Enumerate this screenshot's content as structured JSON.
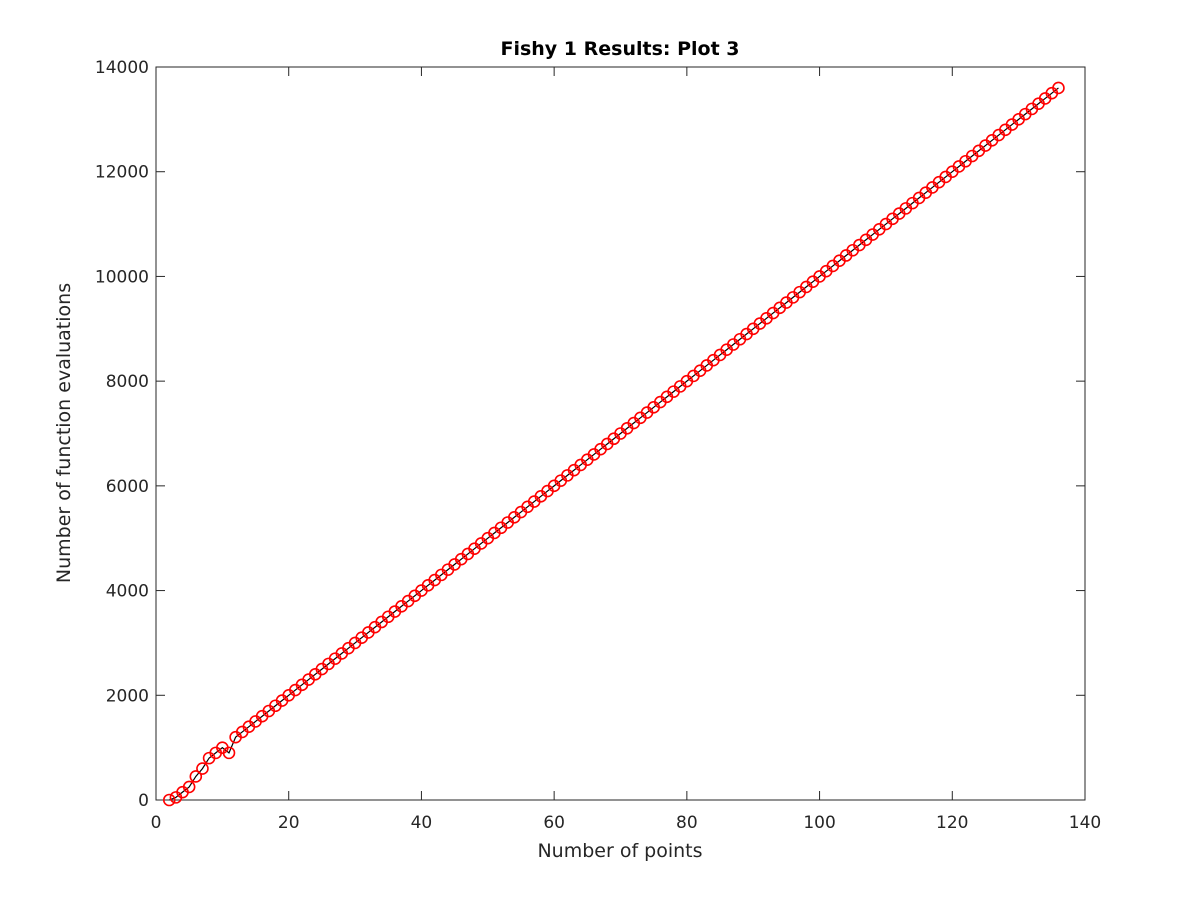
{
  "chart_data": {
    "type": "line",
    "title": "Fishy 1 Results:  Plot 3",
    "xlabel": "Number of points",
    "ylabel": "Number of function evaluations",
    "xlim": [
      0,
      140
    ],
    "ylim": [
      0,
      14000
    ],
    "xticks": [
      0,
      20,
      40,
      60,
      80,
      100,
      120,
      140
    ],
    "yticks": [
      0,
      2000,
      4000,
      6000,
      8000,
      10000,
      12000,
      14000
    ],
    "grid": false,
    "series": [
      {
        "line_color": "#000000",
        "marker": "circle",
        "marker_color": "#ff0000",
        "x": [
          2,
          3,
          4,
          5,
          6,
          7,
          8,
          9,
          10,
          11,
          12,
          13,
          14,
          15,
          16,
          17,
          18,
          19,
          20,
          21,
          22,
          23,
          24,
          25,
          26,
          27,
          28,
          29,
          30,
          31,
          32,
          33,
          34,
          35,
          36,
          37,
          38,
          39,
          40,
          41,
          42,
          43,
          44,
          45,
          46,
          47,
          48,
          49,
          50,
          51,
          52,
          53,
          54,
          55,
          56,
          57,
          58,
          59,
          60,
          61,
          62,
          63,
          64,
          65,
          66,
          67,
          68,
          69,
          70,
          71,
          72,
          73,
          74,
          75,
          76,
          77,
          78,
          79,
          80,
          81,
          82,
          83,
          84,
          85,
          86,
          87,
          88,
          89,
          90,
          91,
          92,
          93,
          94,
          95,
          96,
          97,
          98,
          99,
          100,
          101,
          102,
          103,
          104,
          105,
          106,
          107,
          108,
          109,
          110,
          111,
          112,
          113,
          114,
          115,
          116,
          117,
          118,
          119,
          120,
          121,
          122,
          123,
          124,
          125,
          126,
          127,
          128,
          129,
          130,
          131,
          132,
          133,
          134,
          135,
          136
        ],
        "y": [
          0,
          50,
          150,
          250,
          450,
          600,
          800,
          900,
          1000,
          900,
          1200,
          1300,
          1400,
          1500,
          1600,
          1700,
          1800,
          1900,
          2000,
          2100,
          2200,
          2300,
          2400,
          2500,
          2600,
          2700,
          2800,
          2900,
          3000,
          3100,
          3200,
          3300,
          3400,
          3500,
          3600,
          3700,
          3800,
          3900,
          4000,
          4100,
          4200,
          4300,
          4400,
          4500,
          4600,
          4700,
          4800,
          4900,
          5000,
          5100,
          5200,
          5300,
          5400,
          5500,
          5600,
          5700,
          5800,
          5900,
          6000,
          6100,
          6200,
          6300,
          6400,
          6500,
          6600,
          6700,
          6800,
          6900,
          7000,
          7100,
          7200,
          7300,
          7400,
          7500,
          7600,
          7700,
          7800,
          7900,
          8000,
          8100,
          8200,
          8300,
          8400,
          8500,
          8600,
          8700,
          8800,
          8900,
          9000,
          9100,
          9200,
          9300,
          9400,
          9500,
          9600,
          9700,
          9800,
          9900,
          10000,
          10100,
          10200,
          10300,
          10400,
          10500,
          10600,
          10700,
          10800,
          10900,
          11000,
          11100,
          11200,
          11300,
          11400,
          11500,
          11600,
          11700,
          11800,
          11900,
          12000,
          12100,
          12200,
          12300,
          12400,
          12500,
          12600,
          12700,
          12800,
          12900,
          13000,
          13100,
          13200,
          13300,
          13400,
          13500,
          13600
        ]
      }
    ]
  }
}
